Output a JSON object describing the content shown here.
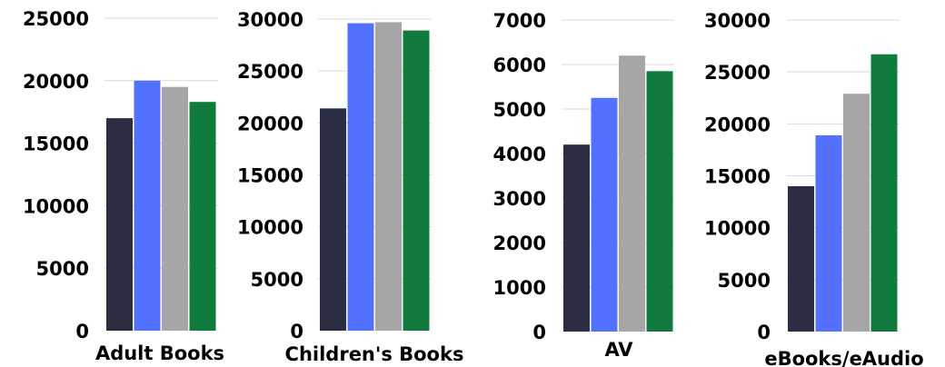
{
  "chart_data": [
    {
      "type": "bar",
      "categories": [
        "Adult Books"
      ],
      "series": [
        {
          "values": [
            17000
          ]
        },
        {
          "values": [
            20000
          ]
        },
        {
          "values": [
            19500
          ]
        },
        {
          "values": [
            18300
          ]
        }
      ],
      "title": "",
      "xlabel": "",
      "ylabel": "",
      "ylim": [
        0,
        25000
      ],
      "yticks": [
        0,
        5000,
        10000,
        15000,
        20000,
        25000
      ],
      "ytick_labels": [
        "0",
        "5000",
        "10000",
        "15000",
        "20000",
        "25000"
      ],
      "grid": true,
      "legend": "none"
    },
    {
      "type": "bar",
      "categories": [
        "Children's Books"
      ],
      "series": [
        {
          "values": [
            21400
          ]
        },
        {
          "values": [
            29600
          ]
        },
        {
          "values": [
            29700
          ]
        },
        {
          "values": [
            28900
          ]
        }
      ],
      "title": "",
      "xlabel": "",
      "ylabel": "",
      "ylim": [
        0,
        30000
      ],
      "yticks": [
        0,
        5000,
        10000,
        15000,
        20000,
        25000,
        30000
      ],
      "ytick_labels": [
        "0",
        "5000",
        "10000",
        "15000",
        "20000",
        "25000",
        "30000"
      ],
      "grid": true,
      "legend": "none"
    },
    {
      "type": "bar",
      "categories": [
        "AV"
      ],
      "series": [
        {
          "values": [
            4200
          ]
        },
        {
          "values": [
            5250
          ]
        },
        {
          "values": [
            6200
          ]
        },
        {
          "values": [
            5850
          ]
        }
      ],
      "title": "",
      "xlabel": "",
      "ylabel": "",
      "ylim": [
        0,
        7000
      ],
      "yticks": [
        0,
        1000,
        2000,
        3000,
        4000,
        5000,
        6000,
        7000
      ],
      "ytick_labels": [
        "0",
        "1000",
        "2000",
        "3000",
        "4000",
        "5000",
        "6000",
        "7000"
      ],
      "grid": true,
      "legend": "none"
    },
    {
      "type": "bar",
      "categories": [
        "eBooks/eAudio"
      ],
      "series": [
        {
          "values": [
            14000
          ]
        },
        {
          "values": [
            18900
          ]
        },
        {
          "values": [
            22900
          ]
        },
        {
          "values": [
            26700
          ]
        }
      ],
      "title": "",
      "xlabel": "",
      "ylabel": "",
      "ylim": [
        0,
        30000
      ],
      "yticks": [
        0,
        5000,
        10000,
        15000,
        20000,
        25000,
        30000
      ],
      "ytick_labels": [
        "0",
        "5000",
        "10000",
        "15000",
        "20000",
        "25000",
        "30000"
      ],
      "grid": true,
      "legend": "none"
    }
  ],
  "colors": {
    "series": [
      "#2b2d42",
      "#5271ff",
      "#a6a6a6",
      "#117a3d"
    ],
    "grid": "#d9d9d9",
    "text": "#000000",
    "background": "#ffffff"
  }
}
